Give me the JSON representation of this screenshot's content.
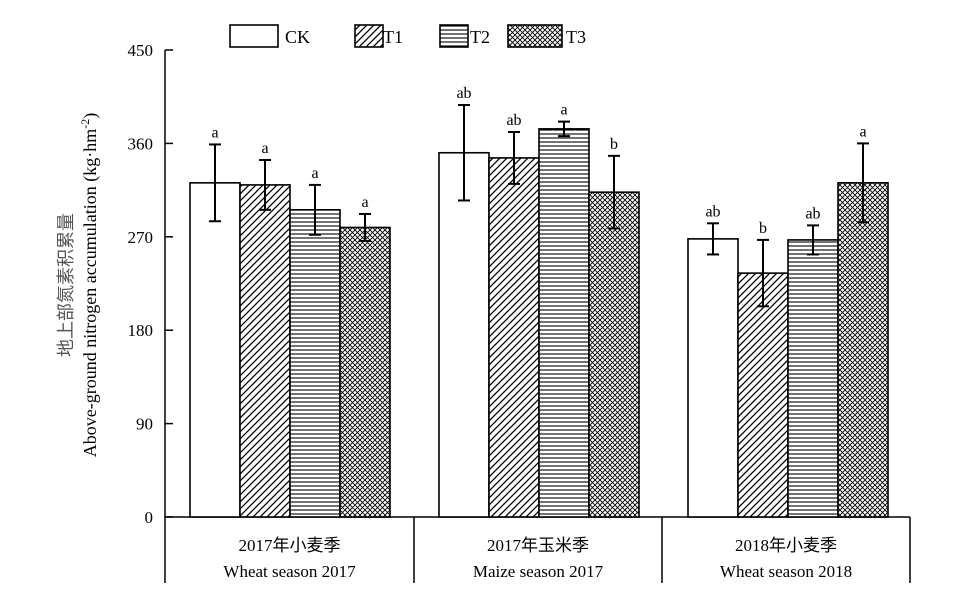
{
  "chart_data": {
    "type": "bar",
    "ylabel_cn": "地上部氮素积累量",
    "ylabel_en_main": "Above-ground nitrogen accumulation (kg·hm",
    "ylabel_en_sup": "-2",
    "ylabel_en_close": ")",
    "ylim": [
      0,
      450
    ],
    "yticks": [
      "0",
      "90",
      "180",
      "270",
      "360",
      "450"
    ],
    "legend_position": "top",
    "categories": [
      {
        "cn": "2017年小麦季",
        "en": "Wheat season 2017"
      },
      {
        "cn": "2017年玉米季",
        "en": "Maize season 2017"
      },
      {
        "cn": "2018年小麦季",
        "en": "Wheat season 2018"
      }
    ],
    "series": [
      {
        "name": "CK",
        "pattern": "blank",
        "values": [
          322,
          351,
          268
        ],
        "errors": [
          37,
          46,
          15
        ],
        "labels": [
          "a",
          "ab",
          "ab"
        ]
      },
      {
        "name": "T1",
        "pattern": "diagonal",
        "values": [
          320,
          346,
          235
        ],
        "errors": [
          24,
          25,
          32
        ],
        "labels": [
          "a",
          "ab",
          "b"
        ]
      },
      {
        "name": "T2",
        "pattern": "horizontal",
        "values": [
          296,
          374,
          267
        ],
        "errors": [
          24,
          7,
          14
        ],
        "labels": [
          "a",
          "a",
          "ab"
        ]
      },
      {
        "name": "T3",
        "pattern": "crosshatch",
        "values": [
          279,
          313,
          322
        ],
        "errors": [
          13,
          35,
          38
        ],
        "labels": [
          "a",
          "b",
          "a"
        ]
      }
    ]
  }
}
